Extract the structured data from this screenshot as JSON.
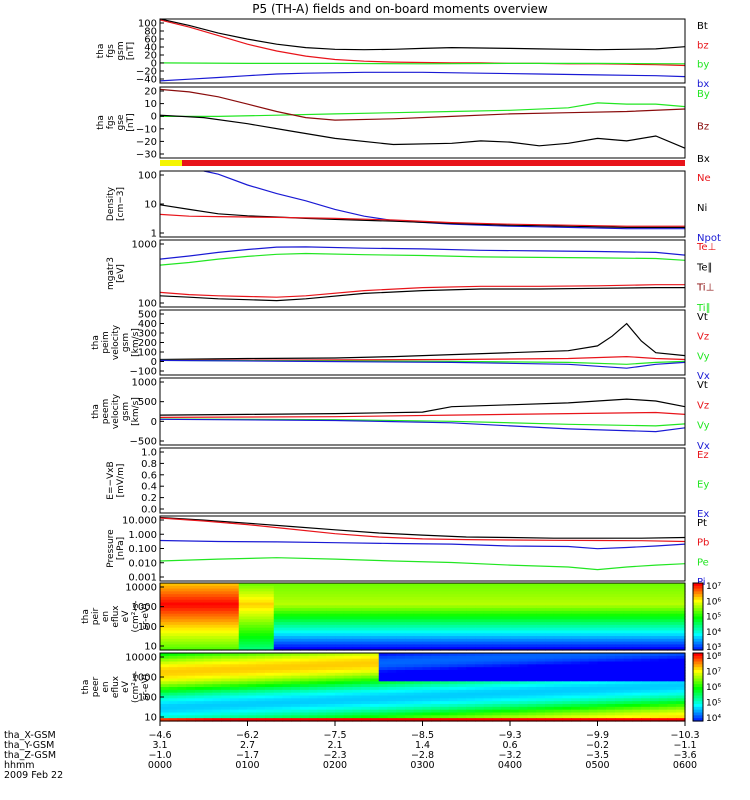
{
  "title": "P5 (TH-A) fields and on-board moments overview",
  "colors": {
    "black": "#000000",
    "red": "#e8141a",
    "darkred": "#8a0c0c",
    "green": "#22e622",
    "blue": "#1a1ad4",
    "yellow": "#f5f500"
  },
  "chart_data": [
    {
      "type": "line",
      "ylabel_lines": [
        "tha",
        "fgs",
        "gsm",
        "[nT]"
      ],
      "yticks": [
        "100",
        "80",
        "60",
        "40",
        "20",
        "0",
        "−20",
        "−40"
      ],
      "ylim": [
        -45,
        105
      ],
      "legend": [
        {
          "label": "Bt",
          "color": "#000000"
        },
        {
          "label": "bz",
          "color": "#e8141a"
        },
        {
          "label": "by",
          "color": "#22e622"
        },
        {
          "label": "bx",
          "color": "#1a1ad4"
        }
      ],
      "series": [
        {
          "color": "#000000",
          "x": [
            0,
            20,
            40,
            60,
            80,
            100,
            120,
            140,
            160,
            180,
            200,
            220,
            240,
            260,
            280,
            300,
            320,
            340,
            360
          ],
          "y": [
            105,
            90,
            72,
            58,
            46,
            38,
            34,
            33,
            34,
            36,
            38,
            37,
            36,
            35,
            34,
            33,
            34,
            35,
            40
          ]
        },
        {
          "color": "#e8141a",
          "x": [
            0,
            20,
            40,
            60,
            80,
            100,
            120,
            140,
            160,
            180,
            200,
            220,
            240,
            260,
            280,
            300,
            320,
            340,
            360
          ],
          "y": [
            103,
            86,
            66,
            46,
            30,
            18,
            10,
            6,
            4,
            3,
            2,
            2,
            1,
            1,
            0,
            0,
            -1,
            -2,
            -4
          ]
        },
        {
          "color": "#22e622",
          "x": [
            0,
            60,
            120,
            180,
            240,
            300,
            360
          ],
          "y": [
            2,
            1,
            1,
            0,
            1,
            1,
            0
          ]
        },
        {
          "color": "#1a1ad4",
          "x": [
            0,
            20,
            40,
            60,
            80,
            100,
            140,
            180,
            220,
            260,
            300,
            340,
            360
          ],
          "y": [
            -40,
            -36,
            -32,
            -28,
            -24,
            -22,
            -20,
            -20,
            -22,
            -24,
            -26,
            -28,
            -30
          ]
        }
      ]
    },
    {
      "type": "line",
      "ylabel_lines": [
        "tha",
        "fgs",
        "gse",
        "[nT]"
      ],
      "yticks": [
        "20",
        "10",
        "0",
        "−10",
        "−20",
        "−30"
      ],
      "ylim": [
        -36,
        22
      ],
      "legend": [
        {
          "label": "By",
          "color": "#22e622"
        },
        {
          "label": "Bz",
          "color": "#8a0c0c"
        },
        {
          "label": "Bx",
          "color": "#000000"
        }
      ],
      "series": [
        {
          "color": "#22e622",
          "x": [
            0,
            40,
            80,
            120,
            160,
            200,
            240,
            280,
            300,
            320,
            340,
            360
          ],
          "y": [
            -2,
            -2,
            -1,
            0,
            1,
            2,
            3,
            5,
            9,
            8,
            8,
            6
          ]
        },
        {
          "color": "#8a0c0c",
          "x": [
            0,
            20,
            40,
            60,
            80,
            100,
            120,
            160,
            200,
            240,
            280,
            320,
            360
          ],
          "y": [
            20,
            18,
            14,
            8,
            2,
            -3,
            -5,
            -4,
            -2,
            0,
            1,
            2,
            4
          ]
        },
        {
          "color": "#000000",
          "x": [
            0,
            30,
            60,
            90,
            120,
            160,
            200,
            220,
            240,
            260,
            280,
            300,
            320,
            340,
            360
          ],
          "y": [
            -1,
            -3,
            -8,
            -14,
            -20,
            -25,
            -24,
            -22,
            -23,
            -26,
            -24,
            -20,
            -22,
            -18,
            -28
          ]
        }
      ]
    },
    {
      "type": "line",
      "log": true,
      "ylabel_lines": [
        "Density",
        "[cm−3]"
      ],
      "yticks": [
        "100",
        "10",
        "1"
      ],
      "ylim": [
        0.3,
        250
      ],
      "legend": [
        {
          "label": "Ne",
          "color": "#e8141a"
        },
        {
          "label": "Ni",
          "color": "#000000"
        },
        {
          "label": "Npot",
          "color": "#1a1ad4"
        }
      ],
      "series": [
        {
          "color": "#1a1ad4",
          "x": [
            30,
            40,
            60,
            80,
            100,
            120,
            140,
            160,
            200,
            240,
            280,
            320,
            360
          ],
          "y": [
            250,
            180,
            60,
            25,
            12,
            5,
            2.5,
            1.6,
            1.1,
            0.9,
            0.8,
            0.7,
            0.7
          ]
        },
        {
          "color": "#000000",
          "x": [
            0,
            20,
            40,
            60,
            80,
            100,
            120,
            160,
            200,
            240,
            280,
            320,
            360
          ],
          "y": [
            8,
            5,
            3.2,
            2.6,
            2.3,
            2,
            1.8,
            1.5,
            1.2,
            1,
            0.9,
            0.8,
            0.8
          ]
        },
        {
          "color": "#e8141a",
          "x": [
            0,
            20,
            40,
            60,
            80,
            100,
            120,
            160,
            200,
            240,
            280,
            320,
            360
          ],
          "y": [
            3,
            2.5,
            2.4,
            2.3,
            2.2,
            2.1,
            2,
            1.7,
            1.3,
            1.1,
            1,
            0.9,
            0.9
          ]
        }
      ]
    },
    {
      "type": "line",
      "log": true,
      "ylabel_lines": [
        "mgatr3",
        "[eV]"
      ],
      "yticks": [
        "1000",
        "100"
      ],
      "ylim": [
        35,
        10000
      ],
      "legend": [
        {
          "label": "Te⊥",
          "color": "#e8141a"
        },
        {
          "label": "Te∥",
          "color": "#000000"
        },
        {
          "label": "Ti⊥",
          "color": "#8a0c0c"
        },
        {
          "label": "Ti∥",
          "color": "#22e622"
        }
      ],
      "series": [
        {
          "color": "#1a1ad4",
          "x": [
            0,
            20,
            40,
            60,
            80,
            100,
            140,
            180,
            220,
            260,
            300,
            340,
            360
          ],
          "y": [
            2000,
            2600,
            3500,
            4500,
            5500,
            5600,
            5000,
            4700,
            4200,
            4000,
            3800,
            3500,
            2800
          ]
        },
        {
          "color": "#22e622",
          "x": [
            0,
            20,
            40,
            60,
            80,
            100,
            140,
            180,
            220,
            260,
            300,
            340,
            360
          ],
          "y": [
            1200,
            1500,
            2000,
            2500,
            3000,
            3200,
            2900,
            2700,
            2400,
            2300,
            2200,
            2100,
            1800
          ]
        },
        {
          "color": "#e8141a",
          "x": [
            0,
            20,
            40,
            60,
            80,
            100,
            140,
            180,
            220,
            260,
            300,
            340,
            360
          ],
          "y": [
            120,
            100,
            90,
            85,
            80,
            90,
            140,
            180,
            200,
            200,
            210,
            230,
            230
          ]
        },
        {
          "color": "#000000",
          "x": [
            0,
            20,
            40,
            60,
            80,
            100,
            140,
            180,
            220,
            260,
            300,
            340,
            360
          ],
          "y": [
            90,
            80,
            70,
            65,
            60,
            70,
            110,
            140,
            160,
            160,
            170,
            180,
            180
          ]
        }
      ]
    },
    {
      "type": "line",
      "ylabel_lines": [
        "tha",
        "peim",
        "velocity",
        "gsm",
        "[km/s]"
      ],
      "yticks": [
        "500",
        "400",
        "300",
        "200",
        "100",
        "0",
        "−100"
      ],
      "ylim": [
        -150,
        520
      ],
      "legend": [
        {
          "label": "Vt",
          "color": "#000000"
        },
        {
          "label": "Vz",
          "color": "#e8141a"
        },
        {
          "label": "Vy",
          "color": "#22e622"
        },
        {
          "label": "Vx",
          "color": "#1a1ad4"
        }
      ],
      "series": [
        {
          "color": "#000000",
          "x": [
            0,
            60,
            120,
            160,
            200,
            240,
            280,
            300,
            310,
            320,
            330,
            340,
            360
          ],
          "y": [
            10,
            20,
            25,
            40,
            60,
            80,
            100,
            150,
            250,
            380,
            200,
            80,
            50
          ]
        },
        {
          "color": "#e8141a",
          "x": [
            0,
            100,
            200,
            280,
            320,
            340,
            360
          ],
          "y": [
            0,
            5,
            10,
            20,
            40,
            20,
            10
          ]
        },
        {
          "color": "#22e622",
          "x": [
            0,
            100,
            200,
            280,
            320,
            340,
            360
          ],
          "y": [
            0,
            -5,
            -10,
            -20,
            -40,
            -20,
            -10
          ]
        },
        {
          "color": "#1a1ad4",
          "x": [
            0,
            100,
            200,
            280,
            320,
            340,
            360
          ],
          "y": [
            0,
            -10,
            -20,
            -40,
            -80,
            -40,
            -20
          ]
        }
      ]
    },
    {
      "type": "line",
      "ylabel_lines": [
        "tha",
        "peem",
        "velocity",
        "gsm",
        "[km/s]"
      ],
      "yticks": [
        "1000",
        "500",
        "0",
        "−500"
      ],
      "ylim": [
        -700,
        1050
      ],
      "legend": [
        {
          "label": "Vt",
          "color": "#000000"
        },
        {
          "label": "Vz",
          "color": "#e8141a"
        },
        {
          "label": "Vy",
          "color": "#22e622"
        },
        {
          "label": "Vx",
          "color": "#1a1ad4"
        }
      ],
      "series": [
        {
          "color": "#000000",
          "x": [
            0,
            60,
            120,
            180,
            200,
            240,
            280,
            320,
            340,
            360
          ],
          "y": [
            80,
            100,
            120,
            160,
            300,
            350,
            400,
            500,
            450,
            300
          ]
        },
        {
          "color": "#e8141a",
          "x": [
            0,
            120,
            200,
            280,
            340,
            360
          ],
          "y": [
            20,
            40,
            80,
            120,
            150,
            100
          ]
        },
        {
          "color": "#22e622",
          "x": [
            0,
            120,
            200,
            280,
            340,
            360
          ],
          "y": [
            -20,
            -40,
            -80,
            -160,
            -200,
            -150
          ]
        },
        {
          "color": "#1a1ad4",
          "x": [
            0,
            120,
            200,
            280,
            340,
            360
          ],
          "y": [
            -30,
            -60,
            -120,
            -280,
            -350,
            -250
          ]
        }
      ]
    },
    {
      "type": "line",
      "ylabel_lines": [
        "E=−VxB",
        "[mV/m]"
      ],
      "yticks": [
        "1.0",
        "0.8",
        "0.6",
        "0.4",
        "0.2",
        "0.0"
      ],
      "ylim": [
        0,
        1.05
      ],
      "legend": [
        {
          "label": "Ez",
          "color": "#e8141a"
        },
        {
          "label": "Ey",
          "color": "#22e622"
        },
        {
          "label": "Ex",
          "color": "#1a1ad4"
        }
      ],
      "series": []
    },
    {
      "type": "line",
      "log": true,
      "ylabel_lines": [
        "Pressure",
        "[nPa]"
      ],
      "yticks": [
        "10.000",
        "1.000",
        "0.100",
        "0.010",
        "0.001"
      ],
      "ylim": [
        0.0007,
        15
      ],
      "legend": [
        {
          "label": "Pt",
          "color": "#000000"
        },
        {
          "label": "Pb",
          "color": "#e8141a"
        },
        {
          "label": "Pe",
          "color": "#22e622"
        },
        {
          "label": "Pi",
          "color": "#1a1ad4"
        }
      ],
      "series": [
        {
          "color": "#000000",
          "x": [
            0,
            30,
            60,
            90,
            120,
            150,
            180,
            210,
            240,
            270,
            300,
            330,
            360
          ],
          "y": [
            12,
            8,
            5,
            3,
            1.8,
            1.1,
            0.8,
            0.6,
            0.55,
            0.5,
            0.5,
            0.5,
            0.55
          ]
        },
        {
          "color": "#e8141a",
          "x": [
            0,
            30,
            60,
            90,
            120,
            150,
            180,
            210,
            240,
            270,
            300,
            330,
            360
          ],
          "y": [
            11,
            7,
            4,
            2,
            1,
            0.6,
            0.45,
            0.4,
            0.38,
            0.36,
            0.35,
            0.34,
            0.3
          ]
        },
        {
          "color": "#1a1ad4",
          "x": [
            0,
            40,
            80,
            120,
            160,
            200,
            240,
            280,
            300,
            320,
            340,
            360
          ],
          "y": [
            0.35,
            0.3,
            0.28,
            0.25,
            0.22,
            0.2,
            0.15,
            0.14,
            0.1,
            0.12,
            0.15,
            0.2
          ]
        },
        {
          "color": "#22e622",
          "x": [
            0,
            40,
            80,
            120,
            160,
            200,
            240,
            280,
            300,
            320,
            340,
            360
          ],
          "y": [
            0.015,
            0.02,
            0.025,
            0.02,
            0.015,
            0.012,
            0.008,
            0.006,
            0.004,
            0.006,
            0.008,
            0.01
          ]
        }
      ]
    },
    {
      "type": "heatmap",
      "ylabel_lines": [
        "tha",
        "peir",
        "en",
        "eflux",
        "eV",
        "(cm²-s-",
        "sr-eV)"
      ],
      "yticks": [
        "10000",
        "1000",
        "100",
        "10"
      ],
      "cbar_labels": [
        "10⁷",
        "10⁶",
        "10⁵",
        "10⁴",
        "10³"
      ]
    },
    {
      "type": "heatmap",
      "ylabel_lines": [
        "tha",
        "peer",
        "en",
        "eflux",
        "eV",
        "(cm²-s-",
        "sr-eV)"
      ],
      "yticks": [
        "10000",
        "1000",
        "100",
        "10"
      ],
      "cbar_labels": [
        "10⁸",
        "10⁷",
        "10⁶",
        "10⁵",
        "10⁴"
      ]
    }
  ],
  "xaxis": {
    "rows": [
      {
        "label": "tha_X-GSM",
        "values": [
          "−4.6",
          "−6.2",
          "−7.5",
          "−8.5",
          "−9.3",
          "−9.9",
          "−10.3"
        ]
      },
      {
        "label": "tha_Y-GSM",
        "values": [
          "3.1",
          "2.7",
          "2.1",
          "1.4",
          "0.6",
          "−0.2",
          "−1.1"
        ]
      },
      {
        "label": "tha_Z-GSM",
        "values": [
          "−1.0",
          "−1.7",
          "−2.3",
          "−2.8",
          "−3.2",
          "−3.5",
          "−3.6"
        ]
      },
      {
        "label": "hhmm",
        "values": [
          "0000",
          "0100",
          "0200",
          "0300",
          "0400",
          "0500",
          "0600"
        ]
      }
    ],
    "date": "2009 Feb 22"
  }
}
